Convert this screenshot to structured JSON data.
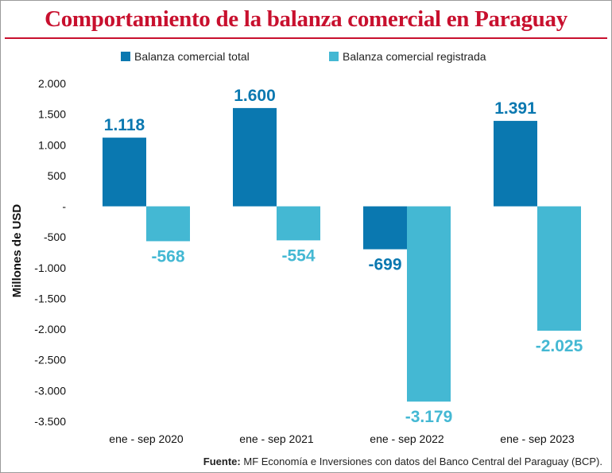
{
  "title": "Comportamiento de la balanza comercial en Paraguay",
  "source": {
    "label": "Fuente:",
    "text": "MF Economía e Inversiones con datos del Banco Central del Paraguay (BCP)."
  },
  "colors": {
    "title": "#c8102e",
    "series_total": "#0a78b0",
    "series_registrada": "#44b8d3",
    "axis_text": "#111111"
  },
  "chart_data": {
    "type": "bar",
    "title": "Comportamiento de la balanza comercial en Paraguay",
    "ylabel": "Millones de USD",
    "xlabel": "",
    "ylim": [
      -3500,
      2000
    ],
    "yticks": [
      2000,
      1500,
      1000,
      500,
      0,
      -500,
      -1000,
      -1500,
      -2000,
      -2500,
      -3000,
      -3500
    ],
    "ytick_labels": [
      "2.000",
      "1.500",
      "1.000",
      "500",
      "-",
      "-500",
      "-1.000",
      "-1.500",
      "-2.000",
      "-2.500",
      "-3.000",
      "-3.500"
    ],
    "categories": [
      "ene - sep 2020",
      "ene - sep 2021",
      "ene - sep 2022",
      "ene - sep 2023"
    ],
    "legend_position": "top",
    "grid": false,
    "series": [
      {
        "name": "Balanza comercial total",
        "values": [
          1118,
          1600,
          -699,
          1391
        ],
        "labels": [
          "1.118",
          "1.600",
          "-699",
          "1.391"
        ]
      },
      {
        "name": "Balanza comercial registrada",
        "values": [
          -568,
          -554,
          -3179,
          -2025
        ],
        "labels": [
          "-568",
          "-554",
          "-3.179",
          "-2.025"
        ]
      }
    ]
  }
}
